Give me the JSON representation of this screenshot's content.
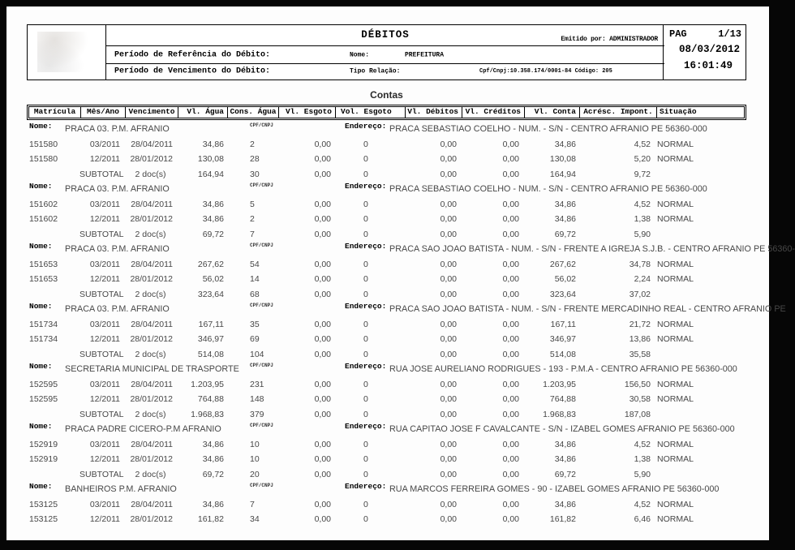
{
  "header": {
    "title": "DÉBITOS",
    "emitted_by": "Emitido por: ADMINISTRADOR",
    "page_label": "PAG",
    "page_value": "1/13",
    "date": "08/03/2012",
    "time": "16:01:49",
    "period_ref_label": "Período de Referência do Débito:",
    "period_due_label": "Período de Vencimento do Débito:",
    "name_label": "Nome:",
    "name_value": "PREFEITURA",
    "relation_label": "Tipo Relação:",
    "cpf_cnpj": "Cpf/Cnpj:10.358.174/0001-84 Código: 205"
  },
  "section_title": "Contas",
  "table": {
    "columns": [
      "Matrícula",
      "Mês/Ano",
      "Vencimento",
      "Vl. Água",
      "Cons. Água",
      "Vl. Esgoto",
      "Vol. Esgoto",
      "Vl. Débitos",
      "Vl. Créditos",
      "Vl. Conta",
      "Acrésc. Impont.",
      "Situação"
    ],
    "group_labels": {
      "name": "Nome:",
      "cpf": "CPF/CNPJ",
      "address": "Endereço:",
      "subtotal": "SUBTOTAL"
    }
  },
  "groups": [
    {
      "name": "PRACA 03.  P.M. AFRANIO",
      "address": "PRACA SEBASTIAO COELHO - NUM. - S/N - CENTRO AFRANIO PE 56360-000",
      "rows": [
        [
          "151580",
          "03/2011",
          "28/04/2011",
          "34,86",
          "2",
          "0,00",
          "0",
          "0,00",
          "0,00",
          "34,86",
          "4,52",
          "NORMAL"
        ],
        [
          "151580",
          "12/2011",
          "28/01/2012",
          "130,08",
          "28",
          "0,00",
          "0",
          "0,00",
          "0,00",
          "130,08",
          "5,20",
          "NORMAL"
        ]
      ],
      "subtotal": [
        "",
        "SUBTOTAL",
        "2 doc(s)",
        "164,94",
        "30",
        "0,00",
        "0",
        "0,00",
        "0,00",
        "164,94",
        "9,72",
        ""
      ]
    },
    {
      "name": "PRACA 03.  P.M. AFRANIO",
      "address": "PRACA SEBASTIAO COELHO - NUM. - S/N - CENTRO AFRANIO PE 56360-000",
      "rows": [
        [
          "151602",
          "03/2011",
          "28/04/2011",
          "34,86",
          "5",
          "0,00",
          "0",
          "0,00",
          "0,00",
          "34,86",
          "4,52",
          "NORMAL"
        ],
        [
          "151602",
          "12/2011",
          "28/01/2012",
          "34,86",
          "2",
          "0,00",
          "0",
          "0,00",
          "0,00",
          "34,86",
          "1,38",
          "NORMAL"
        ]
      ],
      "subtotal": [
        "",
        "SUBTOTAL",
        "2 doc(s)",
        "69,72",
        "7",
        "0,00",
        "0",
        "0,00",
        "0,00",
        "69,72",
        "5,90",
        ""
      ]
    },
    {
      "name": "PRACA 03.  P.M. AFRANIO",
      "address": "PRACA SAO JOAO BATISTA - NUM. - S/N - FRENTE A IGREJA S.J.B. - CENTRO AFRANIO PE 56360-",
      "rows": [
        [
          "151653",
          "03/2011",
          "28/04/2011",
          "267,62",
          "54",
          "0,00",
          "0",
          "0,00",
          "0,00",
          "267,62",
          "34,78",
          "NORMAL"
        ],
        [
          "151653",
          "12/2011",
          "28/01/2012",
          "56,02",
          "14",
          "0,00",
          "0",
          "0,00",
          "0,00",
          "56,02",
          "2,24",
          "NORMAL"
        ]
      ],
      "subtotal": [
        "",
        "SUBTOTAL",
        "2 doc(s)",
        "323,64",
        "68",
        "0,00",
        "0",
        "0,00",
        "0,00",
        "323,64",
        "37,02",
        ""
      ]
    },
    {
      "name": "PRACA 03.  P.M. AFRANIO",
      "address": "PRACA SAO JOAO BATISTA - NUM. - S/N - FRENTE MERCADINHO REAL - CENTRO AFRANIO PE",
      "rows": [
        [
          "151734",
          "03/2011",
          "28/04/2011",
          "167,11",
          "35",
          "0,00",
          "0",
          "0,00",
          "0,00",
          "167,11",
          "21,72",
          "NORMAL"
        ],
        [
          "151734",
          "12/2011",
          "28/01/2012",
          "346,97",
          "69",
          "0,00",
          "0",
          "0,00",
          "0,00",
          "346,97",
          "13,86",
          "NORMAL"
        ]
      ],
      "subtotal": [
        "",
        "SUBTOTAL",
        "2 doc(s)",
        "514,08",
        "104",
        "0,00",
        "0",
        "0,00",
        "0,00",
        "514,08",
        "35,58",
        ""
      ]
    },
    {
      "name": "SECRETARIA MUNICIPAL DE TRASPORTE",
      "address": "RUA JOSE AURELIANO RODRIGUES - 193 - P.M.A - CENTRO AFRANIO PE 56360-000",
      "rows": [
        [
          "152595",
          "03/2011",
          "28/04/2011",
          "1.203,95",
          "231",
          "0,00",
          "0",
          "0,00",
          "0,00",
          "1.203,95",
          "156,50",
          "NORMAL"
        ],
        [
          "152595",
          "12/2011",
          "28/01/2012",
          "764,88",
          "148",
          "0,00",
          "0",
          "0,00",
          "0,00",
          "764,88",
          "30,58",
          "NORMAL"
        ]
      ],
      "subtotal": [
        "",
        "SUBTOTAL",
        "2 doc(s)",
        "1.968,83",
        "379",
        "0,00",
        "0",
        "0,00",
        "0,00",
        "1.968,83",
        "187,08",
        ""
      ]
    },
    {
      "name": "PRACA PADRE CICERO-P.M AFRANIO",
      "address": "RUA CAPITAO JOSE F CAVALCANTE - S/N - IZABEL GOMES AFRANIO PE 56360-000",
      "rows": [
        [
          "152919",
          "03/2011",
          "28/04/2011",
          "34,86",
          "10",
          "0,00",
          "0",
          "0,00",
          "0,00",
          "34,86",
          "4,52",
          "NORMAL"
        ],
        [
          "152919",
          "12/2011",
          "28/01/2012",
          "34,86",
          "10",
          "0,00",
          "0",
          "0,00",
          "0,00",
          "34,86",
          "1,38",
          "NORMAL"
        ]
      ],
      "subtotal": [
        "",
        "SUBTOTAL",
        "2 doc(s)",
        "69,72",
        "20",
        "0,00",
        "0",
        "0,00",
        "0,00",
        "69,72",
        "5,90",
        ""
      ]
    },
    {
      "name": "BANHEIROS P.M. AFRANIO",
      "address": "RUA MARCOS FERREIRA GOMES - 90 - IZABEL GOMES AFRANIO PE 56360-000",
      "rows": [
        [
          "153125",
          "03/2011",
          "28/04/2011",
          "34,86",
          "7",
          "0,00",
          "0",
          "0,00",
          "0,00",
          "34,86",
          "4,52",
          "NORMAL"
        ],
        [
          "153125",
          "12/2011",
          "28/01/2012",
          "161,82",
          "34",
          "0,00",
          "0",
          "0,00",
          "0,00",
          "161,82",
          "6,46",
          "NORMAL"
        ]
      ]
    }
  ]
}
